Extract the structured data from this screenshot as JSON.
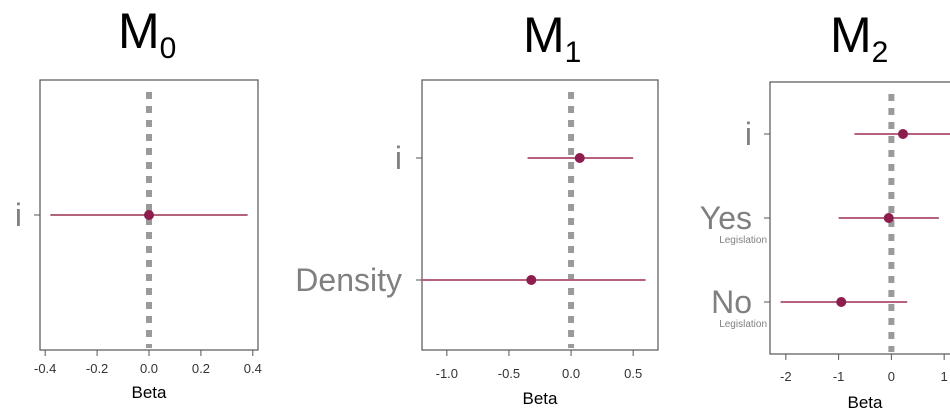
{
  "chart_data": [
    {
      "type": "forest",
      "title": "M",
      "title_subscript": "0",
      "xlabel": "Beta",
      "xlim": [
        -0.42,
        0.42
      ],
      "xticks": [
        -0.4,
        -0.2,
        0.0,
        0.2,
        0.4
      ],
      "xtick_labels": [
        "-0.4",
        "-0.2",
        "0.0",
        "0.2",
        "0.4"
      ],
      "reference_line": 0,
      "rows": [
        {
          "label": "i",
          "sublabel": "",
          "estimate": 0.0,
          "lower": -0.38,
          "upper": 0.38
        }
      ]
    },
    {
      "type": "forest",
      "title": "M",
      "title_subscript": "1",
      "xlabel": "Beta",
      "xlim": [
        -1.2,
        0.7
      ],
      "xticks": [
        -1.0,
        -0.5,
        0.0,
        0.5
      ],
      "xtick_labels": [
        "-1.0",
        "-0.5",
        "0.0",
        "0.5"
      ],
      "reference_line": 0,
      "rows": [
        {
          "label": "i",
          "sublabel": "",
          "estimate": 0.07,
          "lower": -0.35,
          "upper": 0.5
        },
        {
          "label": "Density",
          "sublabel": "",
          "estimate": -0.32,
          "lower": -1.2,
          "upper": 0.6
        }
      ]
    },
    {
      "type": "forest",
      "title": "M",
      "title_subscript": "2",
      "xlabel": "Beta",
      "xlim": [
        -2.3,
        1.3
      ],
      "xticks": [
        -2,
        -1,
        0,
        1
      ],
      "xtick_labels": [
        "-2",
        "-1",
        "0",
        "1"
      ],
      "reference_line": 0,
      "rows": [
        {
          "label": "i",
          "sublabel": "",
          "estimate": 0.22,
          "lower": -0.7,
          "upper": 1.3
        },
        {
          "label": "Yes",
          "sublabel": "Legislation",
          "estimate": -0.05,
          "lower": -1.0,
          "upper": 0.9
        },
        {
          "label": "No",
          "sublabel": "Legislation",
          "estimate": -0.95,
          "lower": -2.1,
          "upper": 0.3
        }
      ]
    }
  ],
  "colors": {
    "point": "#8c1d4c",
    "interval": "#b5637a",
    "reference_line": "#9a9a9a",
    "category_label": "#808080"
  }
}
